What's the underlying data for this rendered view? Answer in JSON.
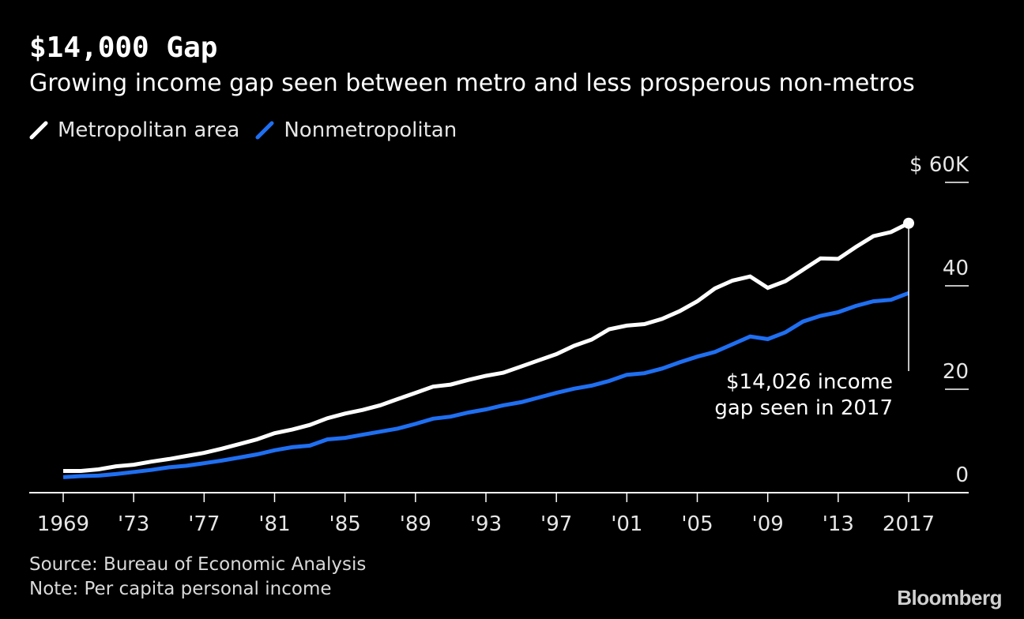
{
  "title": "$14,000 Gap",
  "subtitle": "Growing income gap seen between metro and less prosperous non-metros",
  "source": "Source: Bureau of Economic Analysis",
  "note": "Note: Per capita personal income",
  "brand": "Bloomberg",
  "colors": {
    "background": "#000000",
    "metro": "#ffffff",
    "nonmetro": "#1f6ff2",
    "axis": "#ffffff"
  },
  "chart_data": {
    "type": "line",
    "title": "$14,000 Gap",
    "subtitle": "Growing income gap seen between metro and less prosperous non-metros",
    "xlabel": "",
    "ylabel": "",
    "x": [
      1969,
      1970,
      1971,
      1972,
      1973,
      1974,
      1975,
      1976,
      1977,
      1978,
      1979,
      1980,
      1981,
      1982,
      1983,
      1984,
      1985,
      1986,
      1987,
      1988,
      1989,
      1990,
      1991,
      1992,
      1993,
      1994,
      1995,
      1996,
      1997,
      1998,
      1999,
      2000,
      2001,
      2002,
      2003,
      2004,
      2005,
      2006,
      2007,
      2008,
      2009,
      2010,
      2011,
      2012,
      2013,
      2014,
      2015,
      2016,
      2017
    ],
    "x_tick_values": [
      1969,
      1973,
      1977,
      1981,
      1985,
      1989,
      1993,
      1997,
      2001,
      2005,
      2009,
      2013,
      2017
    ],
    "x_tick_labels": [
      "1969",
      "'73",
      "'77",
      "'81",
      "'85",
      "'89",
      "'93",
      "'97",
      "'01",
      "'05",
      "'09",
      "'13",
      "2017"
    ],
    "y_ticks": [
      0,
      20,
      40,
      60
    ],
    "y_tick_labels": [
      "0",
      "20",
      "40",
      "$ 60K"
    ],
    "ylim": [
      0,
      60
    ],
    "xlim": [
      1967,
      2020
    ],
    "grid": false,
    "legend_position": "top-left",
    "series": [
      {
        "name": "Metropolitan area",
        "color": "#ffffff",
        "values": [
          4.2,
          4.2,
          4.5,
          5.1,
          5.4,
          6.0,
          6.5,
          7.1,
          7.7,
          8.5,
          9.4,
          10.3,
          11.5,
          12.2,
          13.1,
          14.4,
          15.3,
          16.0,
          16.9,
          18.1,
          19.3,
          20.5,
          20.9,
          21.8,
          22.6,
          23.2,
          24.4,
          25.6,
          26.8,
          28.4,
          29.6,
          31.6,
          32.3,
          32.6,
          33.6,
          35.1,
          37.0,
          39.5,
          41.0,
          41.8,
          39.6,
          40.9,
          43.1,
          45.3,
          45.2,
          47.5,
          49.6,
          50.4,
          52.1
        ]
      },
      {
        "name": "Nonmetropolitan",
        "color": "#1f6ff2",
        "values": [
          3.0,
          3.2,
          3.3,
          3.6,
          4.0,
          4.4,
          4.9,
          5.2,
          5.7,
          6.2,
          6.8,
          7.4,
          8.2,
          8.8,
          9.1,
          10.3,
          10.6,
          11.2,
          11.8,
          12.4,
          13.3,
          14.3,
          14.7,
          15.5,
          16.1,
          16.9,
          17.5,
          18.4,
          19.3,
          20.1,
          20.7,
          21.6,
          22.8,
          23.1,
          24.0,
          25.2,
          26.3,
          27.2,
          28.7,
          30.2,
          29.7,
          31.0,
          33.1,
          34.2,
          34.9,
          36.1,
          37.0,
          37.3,
          38.6
        ]
      }
    ],
    "annotations": [
      {
        "text_lines": [
          "$14,026 income",
          "gap seen in 2017"
        ],
        "x": 2017
      }
    ]
  }
}
